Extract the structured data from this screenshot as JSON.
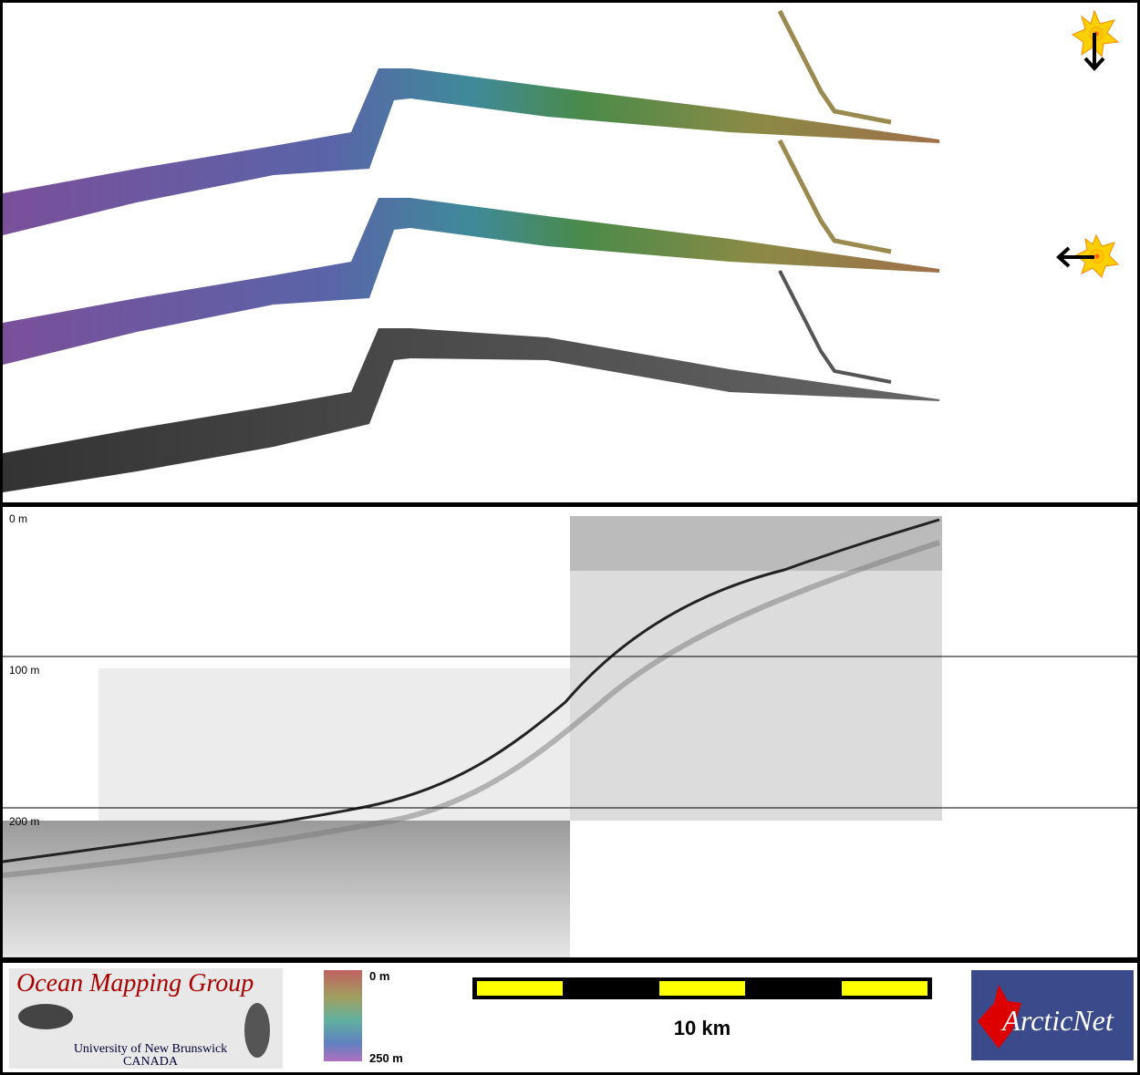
{
  "profile": {
    "depth_labels": [
      "0 m",
      "100 m",
      "200 m"
    ]
  },
  "legend": {
    "logo": {
      "title": "Ocean Mapping Group",
      "subtitle": "University of New Brunswick",
      "country": "CANADA"
    },
    "colorbar": {
      "top": "0 m",
      "bottom": "250 m"
    },
    "scale_bar": {
      "label": "10 km"
    },
    "partner_logo": "ArcticNet"
  }
}
